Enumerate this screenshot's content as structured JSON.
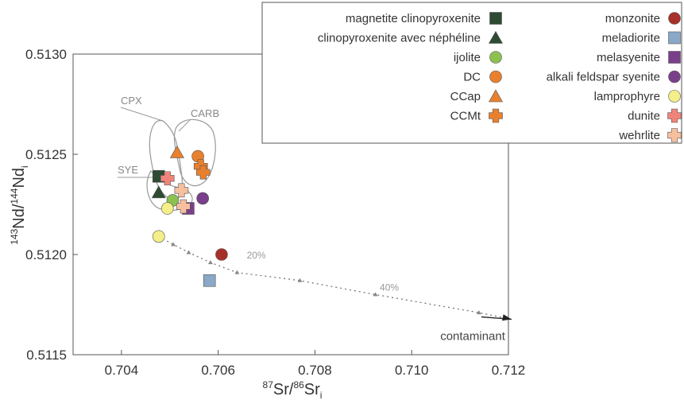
{
  "chart_data": {
    "type": "scatter",
    "xlabel_parts": {
      "sup1": "87",
      "main1": "Sr/",
      "sup2": "86",
      "main2": "Sr",
      "sub": "i"
    },
    "ylabel_parts": {
      "sup1": "143",
      "main1": "Nd/",
      "sup2": "144",
      "main2": "Nd",
      "sub": "i"
    },
    "xlim": [
      0.703,
      0.712
    ],
    "ylim": [
      0.5115,
      0.513
    ],
    "xticks": [
      "0.704",
      "0.706",
      "0.708",
      "0.710",
      "0.712"
    ],
    "yticks": [
      "0.5115",
      "0.5120",
      "0.5125",
      "0.5130"
    ],
    "grid": false,
    "legend_placement": "top-right",
    "series": [
      {
        "name": "magnetite clinopyroxenite",
        "marker": "square",
        "color": "#2e4a33",
        "points": [
          [
            0.70477,
            0.51239
          ]
        ]
      },
      {
        "name": "clinopyroxenite avec néphéline",
        "marker": "triangle",
        "color": "#2e4a33",
        "points": [
          [
            0.70477,
            0.51231
          ]
        ]
      },
      {
        "name": "ijolite",
        "marker": "circle",
        "color": "#8cc152",
        "points": [
          [
            0.70506,
            0.51227
          ]
        ]
      },
      {
        "name": "DC",
        "marker": "circle",
        "color": "#e9802d",
        "points": [
          [
            0.70558,
            0.51249
          ]
        ]
      },
      {
        "name": "CCap",
        "marker": "triangle",
        "color": "#e9802d",
        "points": [
          [
            0.70515,
            0.51251
          ]
        ]
      },
      {
        "name": "CCMt",
        "marker": "cross",
        "color": "#e9802d",
        "points": [
          [
            0.70564,
            0.51244
          ],
          [
            0.70569,
            0.51241
          ]
        ]
      },
      {
        "name": "monzonite",
        "marker": "circle",
        "color": "#a8302a",
        "points": [
          [
            0.70607,
            0.512
          ]
        ]
      },
      {
        "name": "meladiorite",
        "marker": "square",
        "color": "#8aa8c8",
        "points": [
          [
            0.70582,
            0.51187
          ]
        ]
      },
      {
        "name": "melasyenite",
        "marker": "square",
        "color": "#7a3f8a",
        "points": [
          [
            0.70538,
            0.51223
          ]
        ]
      },
      {
        "name": "alkali feldspar syenite",
        "marker": "circle",
        "color": "#7a3f8a",
        "points": [
          [
            0.70568,
            0.51228
          ]
        ]
      },
      {
        "name": "lamprophyre",
        "marker": "circle",
        "color": "#f4ef88",
        "points": [
          [
            0.70477,
            0.51209
          ],
          [
            0.70495,
            0.51223
          ]
        ]
      },
      {
        "name": "dunite",
        "marker": "cross",
        "color": "#f0847a",
        "points": [
          [
            0.70495,
            0.51238
          ]
        ]
      },
      {
        "name": "wehrlite",
        "marker": "cross",
        "color": "#f6bf9e",
        "points": [
          [
            0.70524,
            0.51232
          ],
          [
            0.70528,
            0.51224
          ]
        ]
      }
    ],
    "mixing_curve": {
      "points": [
        [
          0.70477,
          0.51209
        ],
        [
          0.70507,
          0.51205
        ],
        [
          0.70539,
          0.51201
        ],
        [
          0.70584,
          0.51196
        ],
        [
          0.70639,
          0.51191
        ],
        [
          0.70769,
          0.51187
        ],
        [
          0.70925,
          0.5118
        ],
        [
          0.71139,
          0.51171
        ],
        [
          0.712,
          0.51168
        ]
      ],
      "labels": [
        {
          "text": "20%",
          "x": 0.70659,
          "y": 0.51198
        },
        {
          "text": "40%",
          "x": 0.70934,
          "y": 0.51182
        }
      ],
      "end_label": "contaminant"
    },
    "fields": [
      {
        "label": "CPX"
      },
      {
        "label": "CARB"
      },
      {
        "label": "SYE"
      }
    ]
  }
}
